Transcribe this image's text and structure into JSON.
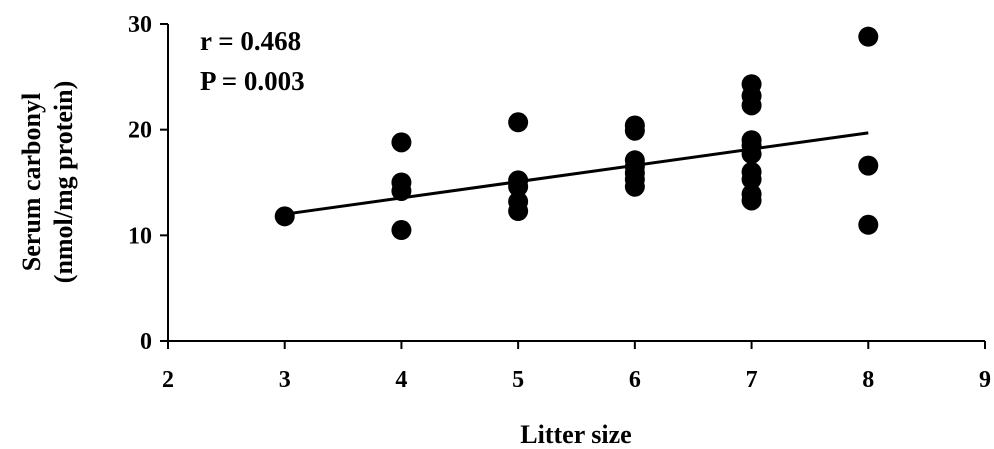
{
  "chart_data": {
    "type": "scatter",
    "title": "",
    "xlabel": "Litter size",
    "ylabel": [
      "Serum carbonyl",
      "(nmol/mg protein)"
    ],
    "xlim": [
      2,
      9
    ],
    "ylim": [
      0,
      30
    ],
    "x_ticks": [
      "2",
      "3",
      "4",
      "5",
      "6",
      "7",
      "8",
      "9"
    ],
    "y_ticks": [
      "0",
      "10",
      "20",
      "30"
    ],
    "grid": false,
    "legend": "none",
    "annotations": [
      "r = 0.468",
      "P = 0.003"
    ],
    "marker_color": "#000000",
    "points": [
      {
        "x": 3,
        "y": 11.8
      },
      {
        "x": 4,
        "y": 18.8
      },
      {
        "x": 4,
        "y": 15.0
      },
      {
        "x": 4,
        "y": 14.2
      },
      {
        "x": 4,
        "y": 10.5
      },
      {
        "x": 5,
        "y": 20.7
      },
      {
        "x": 5,
        "y": 15.2
      },
      {
        "x": 5,
        "y": 14.6
      },
      {
        "x": 5,
        "y": 13.2
      },
      {
        "x": 5,
        "y": 12.3
      },
      {
        "x": 6,
        "y": 20.4
      },
      {
        "x": 6,
        "y": 19.9
      },
      {
        "x": 6,
        "y": 17.1
      },
      {
        "x": 6,
        "y": 16.5
      },
      {
        "x": 6,
        "y": 15.9
      },
      {
        "x": 6,
        "y": 15.3
      },
      {
        "x": 6,
        "y": 14.6
      },
      {
        "x": 7,
        "y": 24.3
      },
      {
        "x": 7,
        "y": 23.2
      },
      {
        "x": 7,
        "y": 22.3
      },
      {
        "x": 7,
        "y": 19.0
      },
      {
        "x": 7,
        "y": 18.5
      },
      {
        "x": 7,
        "y": 17.7
      },
      {
        "x": 7,
        "y": 16.0
      },
      {
        "x": 7,
        "y": 15.3
      },
      {
        "x": 7,
        "y": 13.9
      },
      {
        "x": 7,
        "y": 13.3
      },
      {
        "x": 8,
        "y": 28.8
      },
      {
        "x": 8,
        "y": 16.6
      },
      {
        "x": 8,
        "y": 11.0
      }
    ],
    "trendline": {
      "x": [
        3,
        8
      ],
      "y": [
        12.0,
        19.7
      ]
    }
  }
}
